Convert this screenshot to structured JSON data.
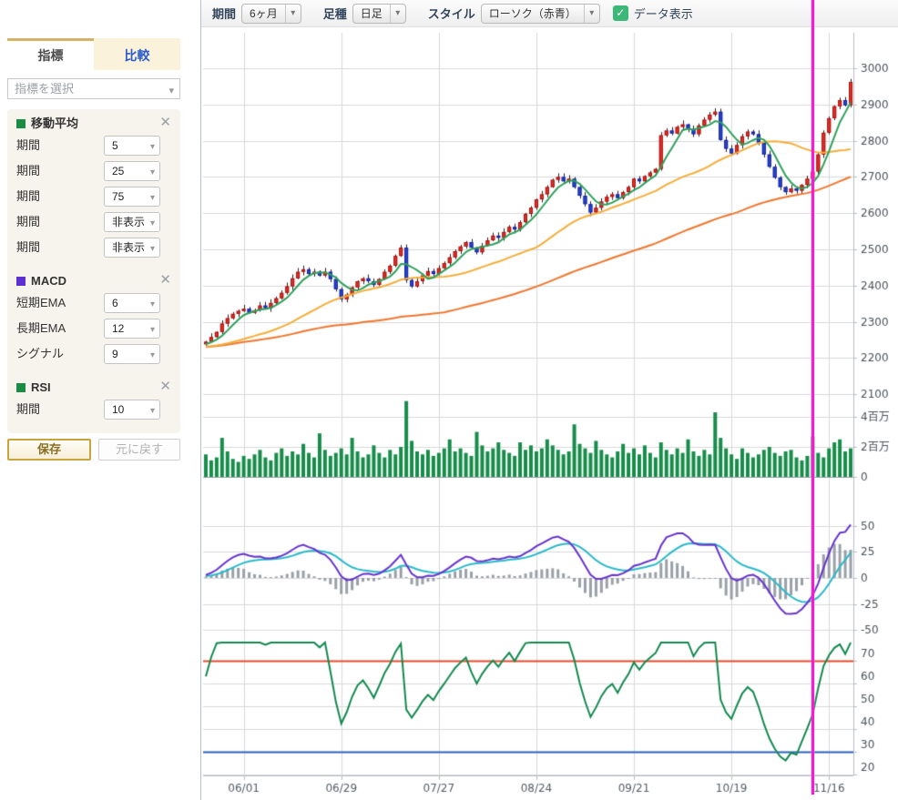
{
  "icons": {
    "caret": "▾",
    "close": "✕",
    "check": "✓"
  },
  "toolbar": {
    "period_label": "期間",
    "period_value": "6ヶ月",
    "bar_type_label": "足種",
    "bar_type_value": "日足",
    "style_label": "スタイル",
    "style_value": "ローソク（赤青）",
    "data_display_label": "データ表示"
  },
  "sidebar": {
    "tab_indicator": "指標",
    "tab_compare": "比較",
    "indicator_select_placeholder": "指標を選択",
    "ma": {
      "title": "移動平均",
      "swatch": "#1a8c45",
      "rows": [
        {
          "label": "期間",
          "value": "5"
        },
        {
          "label": "期間",
          "value": "25"
        },
        {
          "label": "期間",
          "value": "75"
        },
        {
          "label": "期間",
          "value": "非表示"
        },
        {
          "label": "期間",
          "value": "非表示"
        }
      ]
    },
    "macd": {
      "title": "MACD",
      "swatch": "#5b2fd0",
      "rows": [
        {
          "label": "短期EMA",
          "value": "6"
        },
        {
          "label": "長期EMA",
          "value": "12"
        },
        {
          "label": "シグナル",
          "value": "9"
        }
      ]
    },
    "rsi": {
      "title": "RSI",
      "swatch": "#1a8c45",
      "rows": [
        {
          "label": "期間",
          "value": "10"
        }
      ]
    },
    "save_button": "保存",
    "reset_button": "元に戻す"
  },
  "chart_data": {
    "type": "candlestick",
    "panels": [
      "price+sma",
      "volume",
      "macd",
      "rsi"
    ],
    "x_labels": [
      "06/01",
      "06/29",
      "07/27",
      "08/24",
      "09/21",
      "10/19",
      "11/16"
    ],
    "x_label_indices": [
      7,
      25,
      43,
      61,
      79,
      97,
      115
    ],
    "price_axis": {
      "ticks": [
        3000,
        2900,
        2800,
        2700,
        2600,
        2500,
        2400,
        2300,
        2200,
        2100
      ]
    },
    "volume_axis": {
      "ticks": [
        "4百万",
        "2百万",
        "0"
      ],
      "tick_values_millions": [
        4,
        2,
        0
      ]
    },
    "macd_axis": {
      "ticks": [
        50,
        25,
        0,
        -25,
        -50
      ]
    },
    "rsi_axis": {
      "ticks": [
        70,
        60,
        50,
        40,
        30,
        20
      ],
      "overbought": 70,
      "oversold": 30
    },
    "indicators": {
      "sma_periods": [
        5,
        25,
        75
      ],
      "macd": {
        "fast": 6,
        "slow": 12,
        "signal": 9
      },
      "rsi_period": 10
    },
    "crosshair_index": 112,
    "warmup_closes": [
      2222,
      2226,
      2230,
      2225,
      2228,
      2232,
      2227,
      2224,
      2229,
      2233,
      2228,
      2231,
      2226,
      2222,
      2227,
      2231,
      2235,
      2230,
      2226,
      2231,
      2236,
      2232,
      2228,
      2233,
      2238,
      2234,
      2230,
      2236,
      2242,
      2238
    ],
    "closes": [
      2245,
      2258,
      2272,
      2295,
      2310,
      2322,
      2330,
      2336,
      2325,
      2332,
      2345,
      2338,
      2352,
      2365,
      2380,
      2398,
      2420,
      2438,
      2445,
      2432,
      2438,
      2428,
      2438,
      2418,
      2390,
      2362,
      2375,
      2395,
      2412,
      2420,
      2412,
      2402,
      2418,
      2438,
      2455,
      2482,
      2505,
      2415,
      2398,
      2412,
      2428,
      2440,
      2432,
      2448,
      2462,
      2478,
      2495,
      2508,
      2520,
      2505,
      2492,
      2510,
      2525,
      2538,
      2532,
      2548,
      2562,
      2555,
      2575,
      2598,
      2615,
      2638,
      2652,
      2672,
      2692,
      2700,
      2688,
      2695,
      2672,
      2648,
      2625,
      2602,
      2615,
      2632,
      2645,
      2652,
      2642,
      2658,
      2672,
      2695,
      2688,
      2702,
      2712,
      2722,
      2815,
      2828,
      2820,
      2838,
      2845,
      2832,
      2818,
      2842,
      2858,
      2872,
      2880,
      2802,
      2778,
      2765,
      2788,
      2812,
      2825,
      2818,
      2795,
      2762,
      2728,
      2698,
      2672,
      2658,
      2668,
      2662,
      2678,
      2695,
      2715,
      2762,
      2822,
      2862,
      2895,
      2912,
      2898,
      2962
    ],
    "volumes_millions": [
      1.5,
      1.1,
      1.3,
      2.6,
      1.7,
      1.2,
      1.0,
      1.4,
      1.2,
      1.5,
      1.8,
      1.3,
      1.1,
      1.6,
      1.9,
      1.4,
      1.7,
      1.5,
      2.2,
      1.6,
      1.3,
      2.9,
      1.8,
      1.4,
      1.6,
      1.9,
      1.5,
      2.6,
      1.7,
      1.3,
      1.5,
      2.1,
      1.6,
      1.3,
      1.8,
      1.5,
      2.0,
      5.05,
      2.4,
      1.7,
      1.5,
      1.8,
      1.4,
      1.6,
      1.9,
      2.5,
      1.7,
      1.9,
      1.6,
      1.4,
      3.0,
      2.1,
      1.7,
      1.9,
      2.3,
      1.8,
      1.6,
      1.4,
      2.3,
      1.8,
      2.1,
      1.7,
      1.9,
      2.5,
      2.1,
      1.8,
      1.5,
      1.7,
      3.5,
      2.2,
      1.9,
      1.6,
      2.4,
      1.8,
      1.5,
      1.3,
      1.7,
      2.2,
      1.6,
      1.9,
      1.5,
      2.1,
      1.6,
      1.3,
      2.3,
      1.8,
      1.5,
      1.9,
      1.6,
      2.5,
      1.7,
      1.4,
      1.8,
      1.5,
      4.3,
      2.6,
      1.9,
      1.5,
      1.2,
      1.9,
      1.6,
      1.3,
      1.5,
      1.8,
      2.0,
      1.6,
      1.4,
      1.7,
      1.8,
      1.3,
      1.1,
      1.4,
      2.7,
      1.6,
      1.3,
      1.9,
      2.3,
      2.5,
      1.7,
      1.9
    ],
    "colors": {
      "up": "#e2302a",
      "up_border": "#a81410",
      "down": "#2946d2",
      "down_border": "#14239b",
      "wick": "#222222",
      "ma5": "#2fa05c",
      "ma25": "#f5ad39",
      "ma75": "#f0762e",
      "volume": "#188c4a",
      "macd": "#6633cc",
      "macd_signal": "#29b9c9",
      "macd_hist": "#9aa0a8",
      "rsi": "#13894f",
      "rsi_upper": "#e84b2d",
      "rsi_lower": "#2b62c4",
      "crosshair": "#ff17d6",
      "grid": "#d9d9d9",
      "axis": "#b4bcc4",
      "label": "#4a5158"
    }
  }
}
